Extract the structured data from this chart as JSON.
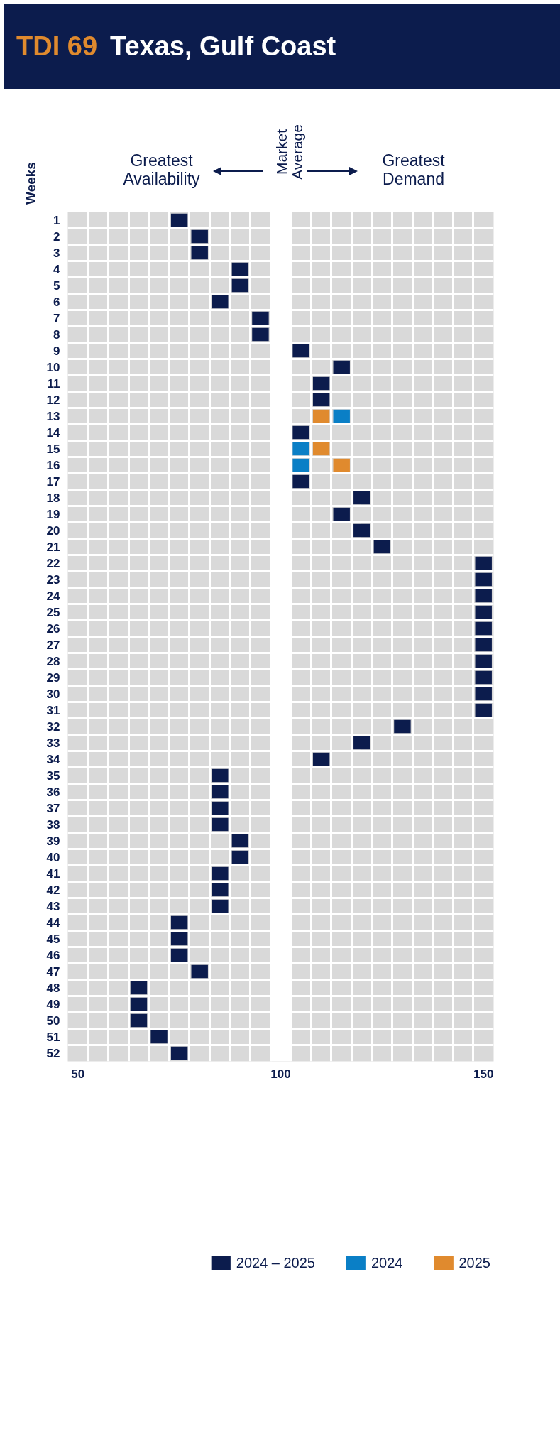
{
  "chart_data": {
    "type": "scatter",
    "orientation": "horizontal",
    "marker": "square",
    "title": "Texas, Gulf Coast",
    "subtitle": "TDI 69",
    "ylabel": "Weeks",
    "annotations": [
      "Greatest Availability",
      "Greatest Demand"
    ],
    "categories": [
      "1",
      "2",
      "3",
      "4",
      "5",
      "6",
      "7",
      "8",
      "9",
      "10",
      "11",
      "12",
      "13",
      "14",
      "15",
      "16",
      "17",
      "18",
      "19",
      "20",
      "21",
      "22",
      "23",
      "24",
      "25",
      "26",
      "27",
      "28",
      "29",
      "30",
      "31",
      "32",
      "33",
      "34",
      "35",
      "36",
      "37",
      "38",
      "39",
      "40",
      "41",
      "42",
      "43",
      "44",
      "45",
      "46",
      "47",
      "48",
      "49",
      "50",
      "51",
      "52"
    ],
    "series": [
      {
        "name": "2024 – 2025",
        "color": "#0c1c4d",
        "values": [
          75,
          80,
          80,
          90,
          90,
          85,
          95,
          95,
          105,
          115,
          110,
          110,
          null,
          105,
          null,
          null,
          105,
          120,
          115,
          120,
          125,
          150,
          150,
          150,
          150,
          150,
          150,
          150,
          150,
          150,
          150,
          130,
          120,
          110,
          85,
          85,
          85,
          85,
          90,
          90,
          85,
          85,
          85,
          75,
          75,
          75,
          80,
          65,
          65,
          65,
          70,
          75
        ]
      },
      {
        "name": "2024",
        "color": "#0a7fc6",
        "values": [
          null,
          null,
          null,
          null,
          null,
          null,
          null,
          null,
          null,
          null,
          null,
          null,
          115,
          null,
          105,
          105,
          null,
          null,
          null,
          null,
          null,
          null,
          null,
          null,
          null,
          null,
          null,
          null,
          null,
          null,
          null,
          null,
          null,
          null,
          null,
          null,
          null,
          null,
          null,
          null,
          null,
          null,
          null,
          null,
          null,
          null,
          null,
          null,
          null,
          null,
          null,
          null
        ]
      },
      {
        "name": "2025",
        "color": "#e08a2e",
        "values": [
          null,
          null,
          null,
          null,
          null,
          null,
          null,
          null,
          null,
          null,
          null,
          null,
          110,
          null,
          110,
          115,
          null,
          null,
          null,
          null,
          null,
          null,
          null,
          null,
          null,
          null,
          null,
          null,
          null,
          null,
          null,
          null,
          null,
          null,
          null,
          null,
          null,
          null,
          null,
          null,
          null,
          null,
          null,
          null,
          null,
          null,
          null,
          null,
          null,
          null,
          null,
          null
        ]
      }
    ],
    "xlim": [
      47.5,
      152.5
    ],
    "xticks": [
      50,
      100,
      150
    ],
    "bands": [
      {
        "axis": "x",
        "from": 97.5,
        "to": 102.5,
        "label": "Market Average",
        "color": "#ffffff"
      }
    ],
    "grid": true,
    "legend": "bottom"
  }
}
